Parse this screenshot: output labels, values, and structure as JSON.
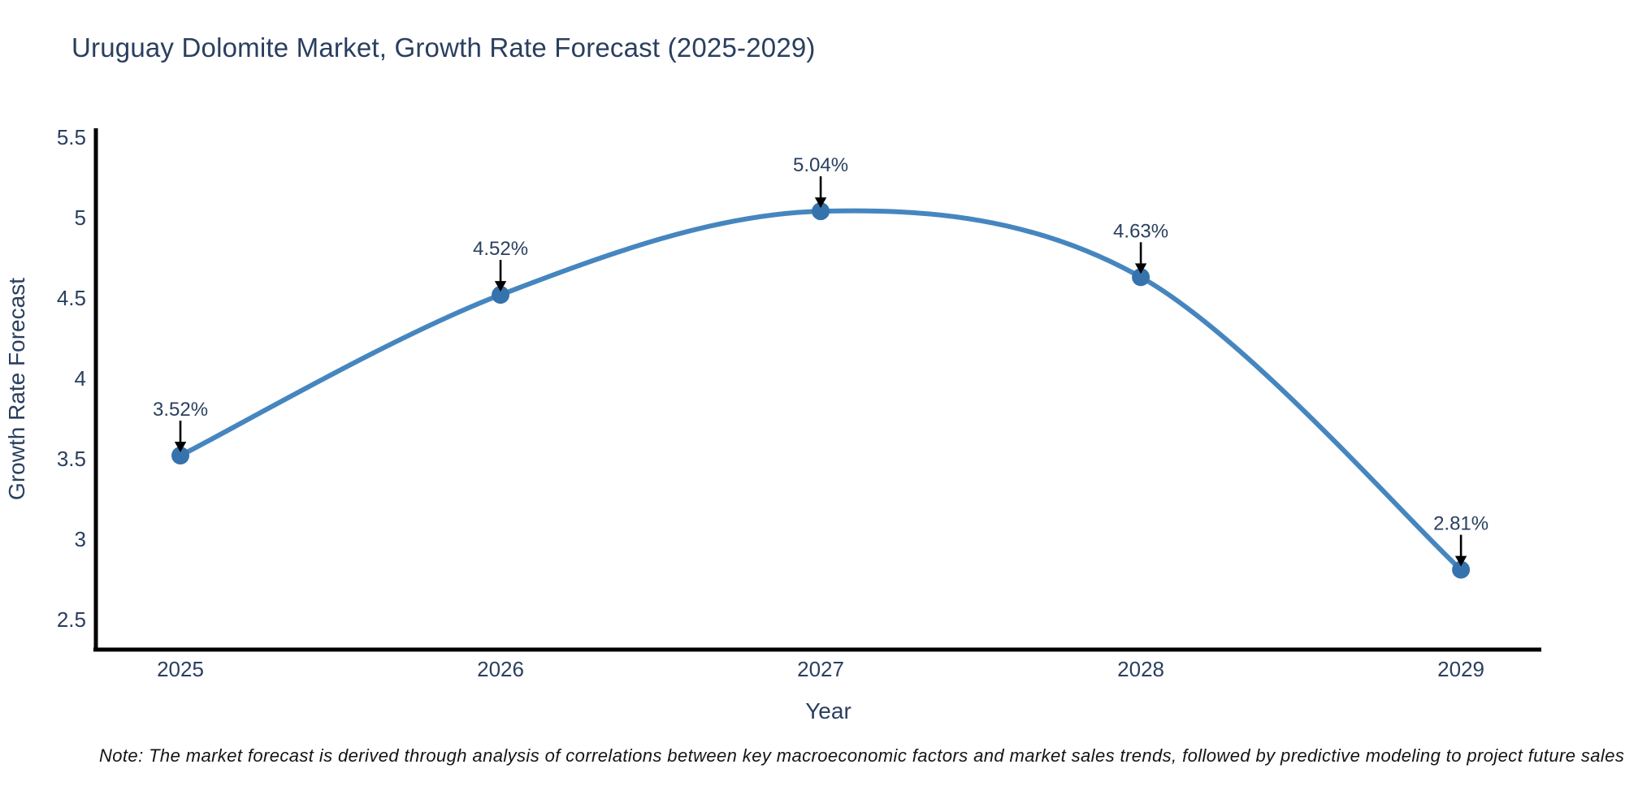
{
  "title": "Uruguay Dolomite Market, Growth Rate Forecast (2025-2029)",
  "note": "Note: The market forecast is derived through analysis of correlations between key macroeconomic factors and market sales trends, followed by predictive modeling to project future sales",
  "colors": {
    "title_text": "#2a3f5f",
    "axis_line": "#000000",
    "tick_text": "#2a3f5f",
    "series_line": "#4686bf",
    "marker_fill": "#3673ac",
    "arrow": "#000000",
    "annotation_text": "#2a3f5f",
    "note_text": "#141414",
    "background": "#ffffff"
  },
  "chart_data": {
    "type": "line",
    "title": "Uruguay Dolomite Market, Growth Rate Forecast (2025-2029)",
    "xlabel": "Year",
    "ylabel": "Growth Rate Forecast",
    "x": [
      2025,
      2026,
      2027,
      2028,
      2029
    ],
    "values": [
      3.52,
      4.52,
      5.04,
      4.63,
      2.81
    ],
    "point_labels": [
      "3.52%",
      "4.52%",
      "5.04%",
      "4.63%",
      "2.81%"
    ],
    "x_tick_labels": [
      "2025",
      "2026",
      "2027",
      "2028",
      "2029"
    ],
    "y_ticks": [
      5.5,
      5,
      4.5,
      4,
      3.5,
      3,
      2.5
    ],
    "y_tick_labels": [
      "5.5",
      "5",
      "4.5",
      "4",
      "3.5",
      "3",
      "2.5"
    ],
    "xlim": [
      2024.736,
      2029.251
    ],
    "ylim": [
      2.313,
      5.556
    ],
    "grid": false,
    "legend": false,
    "line_shape": "spline",
    "annotations_have_arrows": true
  }
}
